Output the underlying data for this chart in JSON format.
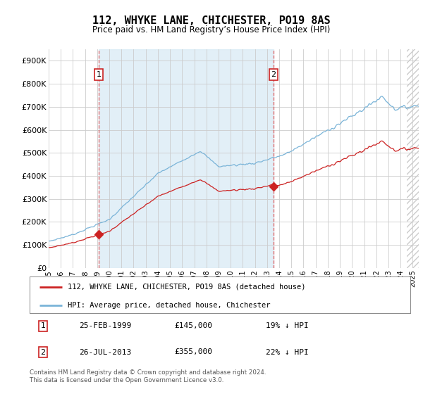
{
  "title": "112, WHYKE LANE, CHICHESTER, PO19 8AS",
  "subtitle": "Price paid vs. HM Land Registry’s House Price Index (HPI)",
  "ylim": [
    0,
    950000
  ],
  "yticks": [
    0,
    100000,
    200000,
    300000,
    400000,
    500000,
    600000,
    700000,
    800000,
    900000
  ],
  "ytick_labels": [
    "£0",
    "£100K",
    "£200K",
    "£300K",
    "£400K",
    "£500K",
    "£600K",
    "£700K",
    "£800K",
    "£900K"
  ],
  "hpi_color": "#7ab4d8",
  "hpi_fill_color": "#d6e9f5",
  "price_color": "#cc2222",
  "dashed_color": "#dd4444",
  "marker1_year": 1999.12,
  "marker1_price": 145000,
  "marker2_year": 2013.54,
  "marker2_price": 355000,
  "legend_label1": "112, WHYKE LANE, CHICHESTER, PO19 8AS (detached house)",
  "legend_label2": "HPI: Average price, detached house, Chichester",
  "annotation1_label": "1",
  "annotation2_label": "2",
  "table_row1": [
    "1",
    "25-FEB-1999",
    "£145,000",
    "19% ↓ HPI"
  ],
  "table_row2": [
    "2",
    "26-JUL-2013",
    "£355,000",
    "22% ↓ HPI"
  ],
  "footer": "Contains HM Land Registry data © Crown copyright and database right 2024.\nThis data is licensed under the Open Government Licence v3.0.",
  "background_color": "#ffffff",
  "grid_color": "#cccccc",
  "shade_between_markers": true,
  "xlim_start": 1995.0,
  "xlim_end": 2025.5
}
